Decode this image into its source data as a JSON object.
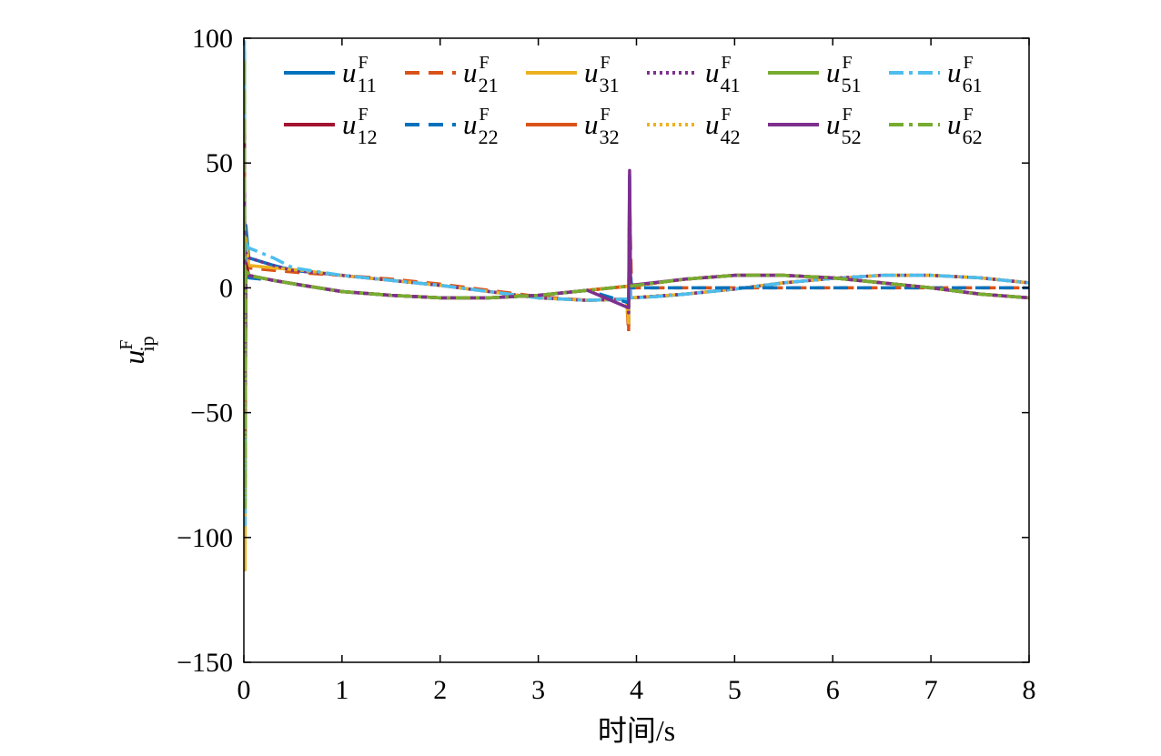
{
  "chart_data": {
    "type": "line",
    "title": "",
    "xlabel": "时间/s",
    "ylabel": {
      "base": "u",
      "sup": "F",
      "sub": "ip"
    },
    "xlim": [
      0,
      8
    ],
    "ylim": [
      -150,
      100
    ],
    "xticks": [
      "0",
      "1",
      "2",
      "3",
      "4",
      "5",
      "6",
      "7",
      "8"
    ],
    "yticks": [
      "100",
      "50",
      "0",
      "−50",
      "−100",
      "−150"
    ],
    "grid": false,
    "legend_position": "top",
    "series": [
      {
        "name": "u11F",
        "label": {
          "base": "u",
          "sup": "F",
          "sub": "11"
        },
        "color": "#0072BD",
        "dash": "solid",
        "points": [
          [
            0,
            0
          ],
          [
            0.005,
            95
          ],
          [
            0.012,
            -90
          ],
          [
            0.02,
            25
          ],
          [
            0.05,
            12
          ],
          [
            0.3,
            9
          ],
          [
            0.5,
            7
          ],
          [
            1,
            5
          ],
          [
            1.5,
            3
          ],
          [
            2,
            1
          ],
          [
            2.5,
            -1.5
          ],
          [
            3,
            -4
          ],
          [
            3.5,
            -5
          ],
          [
            3.9,
            -4.5
          ],
          [
            3.92,
            -15
          ],
          [
            3.93,
            45
          ],
          [
            3.94,
            -4
          ],
          [
            4.2,
            -3.5
          ],
          [
            4.5,
            -2.5
          ],
          [
            5,
            -0.5
          ],
          [
            5.5,
            2
          ],
          [
            6,
            3.8
          ],
          [
            6.5,
            5
          ],
          [
            7,
            5
          ],
          [
            7.5,
            4
          ],
          [
            8,
            2
          ]
        ]
      },
      {
        "name": "u21F",
        "label": {
          "base": "u",
          "sup": "F",
          "sub": "21"
        },
        "color": "#D95319",
        "dash": "dashed",
        "points": [
          [
            0,
            0
          ],
          [
            0.005,
            70
          ],
          [
            0.012,
            -68
          ],
          [
            0.02,
            15
          ],
          [
            0.05,
            8
          ],
          [
            0.3,
            7
          ],
          [
            0.6,
            6
          ],
          [
            1,
            5
          ],
          [
            1.5,
            3.5
          ],
          [
            2,
            1.5
          ],
          [
            2.5,
            -1
          ],
          [
            3,
            -3.5
          ],
          [
            3.5,
            -5
          ],
          [
            3.9,
            -4.5
          ],
          [
            3.92,
            -18
          ],
          [
            3.93,
            35
          ],
          [
            3.95,
            0
          ],
          [
            8,
            0
          ]
        ]
      },
      {
        "name": "u31F",
        "label": {
          "base": "u",
          "sup": "F",
          "sub": "31"
        },
        "color": "#EDB120",
        "dash": "solid",
        "points": [
          [
            0,
            0
          ],
          [
            0.005,
            85
          ],
          [
            0.012,
            -113
          ],
          [
            0.02,
            20
          ],
          [
            0.05,
            9
          ],
          [
            0.3,
            8
          ],
          [
            0.6,
            7
          ],
          [
            1,
            5
          ],
          [
            1.5,
            3
          ],
          [
            2,
            1
          ],
          [
            2.5,
            -1.5
          ],
          [
            3,
            -4
          ],
          [
            3.5,
            -5
          ],
          [
            3.9,
            -4.5
          ],
          [
            3.92,
            -14
          ],
          [
            3.93,
            30
          ],
          [
            3.94,
            -4
          ],
          [
            4.5,
            -2.5
          ],
          [
            5,
            -0.5
          ],
          [
            5.5,
            2
          ],
          [
            6,
            3.8
          ],
          [
            6.5,
            5
          ],
          [
            7,
            5
          ],
          [
            7.5,
            4
          ],
          [
            8,
            2
          ]
        ]
      },
      {
        "name": "u41F",
        "label": {
          "base": "u",
          "sup": "F",
          "sub": "41"
        },
        "color": "#7E2F8E",
        "dash": "dotted",
        "points": [
          [
            0,
            0
          ],
          [
            0.005,
            60
          ],
          [
            0.012,
            -85
          ],
          [
            0.02,
            14
          ],
          [
            0.05,
            12
          ],
          [
            0.3,
            9
          ],
          [
            0.5,
            7
          ],
          [
            1,
            5
          ],
          [
            1.5,
            3
          ],
          [
            2,
            1
          ],
          [
            2.5,
            -1.5
          ],
          [
            3,
            -4
          ],
          [
            3.5,
            -5
          ],
          [
            3.9,
            -4.5
          ],
          [
            3.92,
            -10
          ],
          [
            3.93,
            40
          ],
          [
            3.94,
            -4
          ],
          [
            4.5,
            -2.5
          ],
          [
            5,
            -0.5
          ],
          [
            5.5,
            2
          ],
          [
            6,
            3.8
          ],
          [
            6.5,
            5
          ],
          [
            7,
            5
          ],
          [
            7.5,
            4
          ],
          [
            8,
            2
          ]
        ]
      },
      {
        "name": "u51F",
        "label": {
          "base": "u",
          "sup": "F",
          "sub": "51"
        },
        "color": "#77AC30",
        "dash": "solid",
        "points": [
          [
            0,
            0
          ],
          [
            0.005,
            90
          ],
          [
            0.012,
            -80
          ],
          [
            0.02,
            10
          ],
          [
            0.05,
            5
          ],
          [
            0.3,
            3
          ],
          [
            0.6,
            1
          ],
          [
            1,
            -1.5
          ],
          [
            1.5,
            -3
          ],
          [
            2,
            -4
          ],
          [
            2.5,
            -4
          ],
          [
            3,
            -3
          ],
          [
            3.5,
            -1
          ],
          [
            4,
            1
          ],
          [
            4.5,
            3.5
          ],
          [
            5,
            5
          ],
          [
            5.5,
            5
          ],
          [
            6,
            4
          ],
          [
            6.5,
            2
          ],
          [
            7,
            0
          ],
          [
            7.5,
            -2.5
          ],
          [
            8,
            -4
          ]
        ]
      },
      {
        "name": "u61F",
        "label": {
          "base": "u",
          "sup": "F",
          "sub": "61"
        },
        "color": "#4DBEEE",
        "dash": "dashdot",
        "points": [
          [
            0,
            0
          ],
          [
            0.005,
            100
          ],
          [
            0.012,
            -95
          ],
          [
            0.02,
            18
          ],
          [
            0.05,
            16
          ],
          [
            0.3,
            12
          ],
          [
            0.5,
            8
          ],
          [
            1,
            5
          ],
          [
            1.5,
            3
          ],
          [
            2,
            1
          ],
          [
            2.5,
            -1.5
          ],
          [
            3,
            -4
          ],
          [
            3.5,
            -5
          ],
          [
            3.9,
            -4.5
          ],
          [
            3.92,
            -8
          ],
          [
            3.93,
            33
          ],
          [
            3.94,
            -4
          ],
          [
            4.2,
            -3.5
          ],
          [
            4.5,
            -2.5
          ],
          [
            5,
            -0.5
          ],
          [
            5.5,
            2
          ],
          [
            6,
            3.8
          ],
          [
            6.5,
            5
          ],
          [
            7,
            5
          ],
          [
            7.5,
            4
          ],
          [
            8,
            2
          ]
        ]
      },
      {
        "name": "u12F",
        "label": {
          "base": "u",
          "sup": "F",
          "sub": "12"
        },
        "color": "#A2142F",
        "dash": "solid",
        "points": [
          [
            0,
            0
          ],
          [
            0.005,
            67
          ],
          [
            0.012,
            -60
          ],
          [
            0.02,
            10
          ],
          [
            0.05,
            5
          ],
          [
            0.3,
            3
          ],
          [
            0.6,
            1
          ],
          [
            1,
            -1.5
          ],
          [
            1.5,
            -3
          ],
          [
            2,
            -4
          ],
          [
            2.5,
            -4
          ],
          [
            3,
            -3
          ],
          [
            3.5,
            -1
          ],
          [
            4,
            1
          ],
          [
            4.5,
            3.5
          ],
          [
            5,
            5
          ],
          [
            5.5,
            5
          ],
          [
            6,
            4
          ],
          [
            6.5,
            2
          ],
          [
            7,
            0
          ],
          [
            7.5,
            -2.5
          ],
          [
            8,
            -4
          ]
        ]
      },
      {
        "name": "u22F",
        "label": {
          "base": "u",
          "sup": "F",
          "sub": "22"
        },
        "color": "#0072BD",
        "dash": "dashed",
        "points": [
          [
            0,
            0
          ],
          [
            0.005,
            55
          ],
          [
            0.012,
            -55
          ],
          [
            0.02,
            6
          ],
          [
            0.05,
            4
          ],
          [
            0.3,
            3
          ],
          [
            0.6,
            1
          ],
          [
            1,
            -1.5
          ],
          [
            1.5,
            -3
          ],
          [
            2,
            -4
          ],
          [
            2.5,
            -4
          ],
          [
            3,
            -3
          ],
          [
            3.5,
            -1
          ],
          [
            3.92,
            -6
          ],
          [
            3.93,
            12
          ],
          [
            3.95,
            0
          ],
          [
            8,
            0
          ]
        ]
      },
      {
        "name": "u32F",
        "label": {
          "base": "u",
          "sup": "F",
          "sub": "32"
        },
        "color": "#D95319",
        "dash": "solid",
        "points": [
          [
            0,
            0
          ],
          [
            0.005,
            50
          ],
          [
            0.012,
            -50
          ],
          [
            0.02,
            6
          ],
          [
            0.05,
            5
          ],
          [
            0.3,
            3
          ],
          [
            0.6,
            1
          ],
          [
            1,
            -1.5
          ],
          [
            1.5,
            -3
          ],
          [
            2,
            -4
          ],
          [
            2.5,
            -4
          ],
          [
            3,
            -3
          ],
          [
            3.5,
            -1
          ],
          [
            4,
            1
          ],
          [
            4.5,
            3.5
          ],
          [
            5,
            5
          ],
          [
            5.5,
            5
          ],
          [
            6,
            4
          ],
          [
            6.5,
            2
          ],
          [
            7,
            0
          ],
          [
            7.5,
            -2.5
          ],
          [
            8,
            -4
          ]
        ]
      },
      {
        "name": "u42F",
        "label": {
          "base": "u",
          "sup": "F",
          "sub": "42"
        },
        "color": "#EDB120",
        "dash": "dotted",
        "points": [
          [
            0,
            0
          ],
          [
            0.005,
            45
          ],
          [
            0.012,
            -45
          ],
          [
            0.02,
            6
          ],
          [
            0.05,
            5
          ],
          [
            0.3,
            3
          ],
          [
            0.6,
            1
          ],
          [
            1,
            -1.5
          ],
          [
            1.5,
            -3
          ],
          [
            2,
            -4
          ],
          [
            2.5,
            -4
          ],
          [
            3,
            -3
          ],
          [
            3.5,
            -1
          ],
          [
            4,
            1
          ],
          [
            4.5,
            3.5
          ],
          [
            5,
            5
          ],
          [
            5.5,
            5
          ],
          [
            6,
            4
          ],
          [
            6.5,
            2
          ],
          [
            7,
            0
          ],
          [
            7.5,
            -2.5
          ],
          [
            8,
            -4
          ]
        ]
      },
      {
        "name": "u52F",
        "label": {
          "base": "u",
          "sup": "F",
          "sub": "52"
        },
        "color": "#7E2F8E",
        "dash": "solid",
        "points": [
          [
            0,
            0
          ],
          [
            0.005,
            40
          ],
          [
            0.012,
            -40
          ],
          [
            0.02,
            6
          ],
          [
            0.05,
            5
          ],
          [
            0.3,
            3
          ],
          [
            0.6,
            1
          ],
          [
            1,
            -1.5
          ],
          [
            1.5,
            -3
          ],
          [
            2,
            -4
          ],
          [
            2.5,
            -4
          ],
          [
            3,
            -3
          ],
          [
            3.5,
            -1
          ],
          [
            3.92,
            -8
          ],
          [
            3.93,
            47
          ],
          [
            3.94,
            1
          ],
          [
            4.5,
            3.5
          ],
          [
            5,
            5
          ],
          [
            5.5,
            5
          ],
          [
            6,
            4
          ],
          [
            6.5,
            2
          ],
          [
            7,
            0
          ],
          [
            7.5,
            -2.5
          ],
          [
            8,
            -4
          ]
        ]
      },
      {
        "name": "u62F",
        "label": {
          "base": "u",
          "sup": "F",
          "sub": "62"
        },
        "color": "#77AC30",
        "dash": "dashdot",
        "points": [
          [
            0,
            0
          ],
          [
            0.005,
            92
          ],
          [
            0.012,
            -88
          ],
          [
            0.02,
            8
          ],
          [
            0.05,
            5
          ],
          [
            0.3,
            3
          ],
          [
            0.6,
            1
          ],
          [
            1,
            -1.5
          ],
          [
            1.5,
            -3
          ],
          [
            2,
            -4
          ],
          [
            2.5,
            -4
          ],
          [
            3,
            -3
          ],
          [
            3.5,
            -1
          ],
          [
            4,
            1
          ],
          [
            4.5,
            3.5
          ],
          [
            5,
            5
          ],
          [
            5.5,
            5
          ],
          [
            6,
            4
          ],
          [
            6.5,
            2
          ],
          [
            7,
            0
          ],
          [
            7.5,
            -2.5
          ],
          [
            8,
            -4
          ]
        ]
      }
    ]
  }
}
